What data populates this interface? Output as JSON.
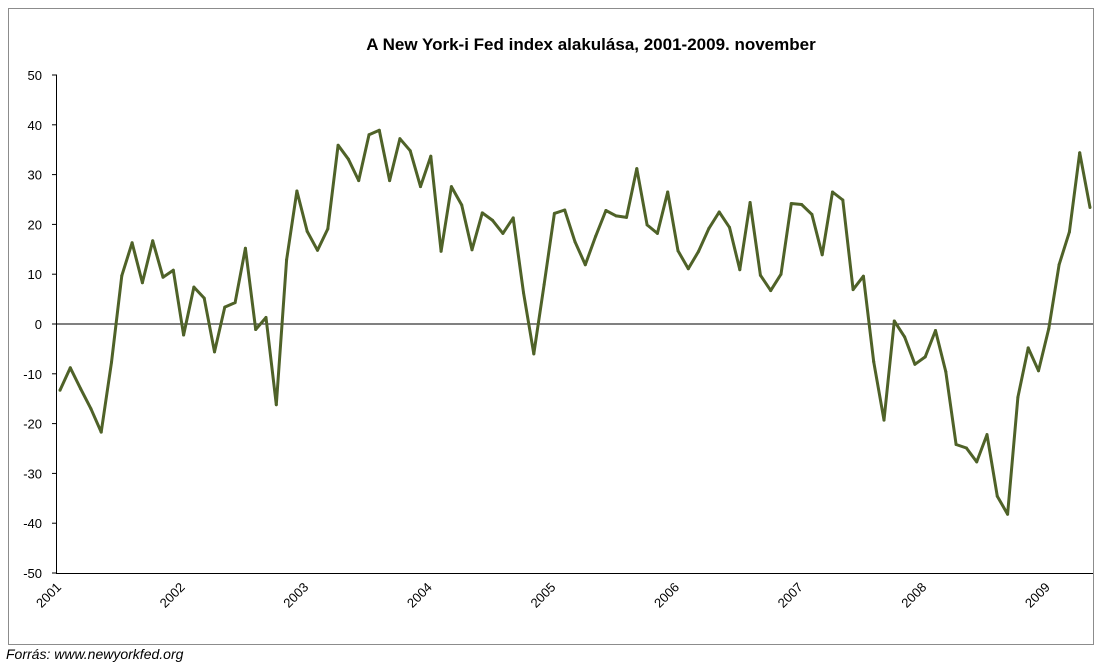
{
  "chart_data": {
    "type": "line",
    "title": "A New York-i Fed index alakulása, 2001-2009. november",
    "xlabel": "",
    "ylabel": "",
    "ylim": [
      -50,
      50
    ],
    "yticks": [
      50,
      40,
      30,
      20,
      10,
      0,
      -10,
      -20,
      -30,
      -40,
      -50
    ],
    "grid": false,
    "legend": "none",
    "line_color": "#4f6228",
    "xtick_labels": [
      "2001",
      "2002",
      "2003",
      "2004",
      "2005",
      "2006",
      "2007",
      "2008",
      "2009"
    ],
    "xtick_index": [
      0,
      12,
      24,
      36,
      48,
      60,
      72,
      84,
      96
    ],
    "series": [
      {
        "values": [
          -13.3,
          -8.8,
          -13.0,
          -17.0,
          -21.7,
          -7.7,
          9.7,
          16.3,
          8.3,
          16.7,
          9.4,
          10.8,
          -2.2,
          7.4,
          5.2,
          -5.6,
          3.4,
          4.3,
          15.2,
          -1.1,
          1.3,
          -16.2,
          12.9,
          26.7,
          18.6,
          14.8,
          19.1,
          35.9,
          33.1,
          28.8,
          38.0,
          38.9,
          28.8,
          37.2,
          34.8,
          27.6,
          33.7,
          14.6,
          27.6,
          23.9,
          14.9,
          22.3,
          20.8,
          18.2,
          21.3,
          6.3,
          -6.0,
          7.9,
          22.2,
          22.9,
          16.5,
          11.9,
          17.6,
          22.8,
          21.7,
          21.4,
          31.2,
          19.9,
          18.2,
          26.5,
          14.7,
          11.1,
          14.6,
          19.2,
          22.5,
          19.4,
          10.9,
          24.4,
          9.8,
          6.7,
          10.0,
          24.2,
          24.0,
          22.0,
          13.9,
          26.5,
          24.9,
          6.9,
          9.6,
          -7.6,
          -19.3,
          0.6,
          -2.6,
          -8.1,
          -6.6,
          -1.3,
          -9.6,
          -24.2,
          -24.9,
          -27.7,
          -22.2,
          -34.6,
          -38.2,
          -14.7,
          -4.8,
          -9.4,
          -0.9,
          11.9,
          18.5,
          34.4,
          23.4
        ]
      }
    ]
  },
  "source": "Forrás: www.newyorkfed.org"
}
